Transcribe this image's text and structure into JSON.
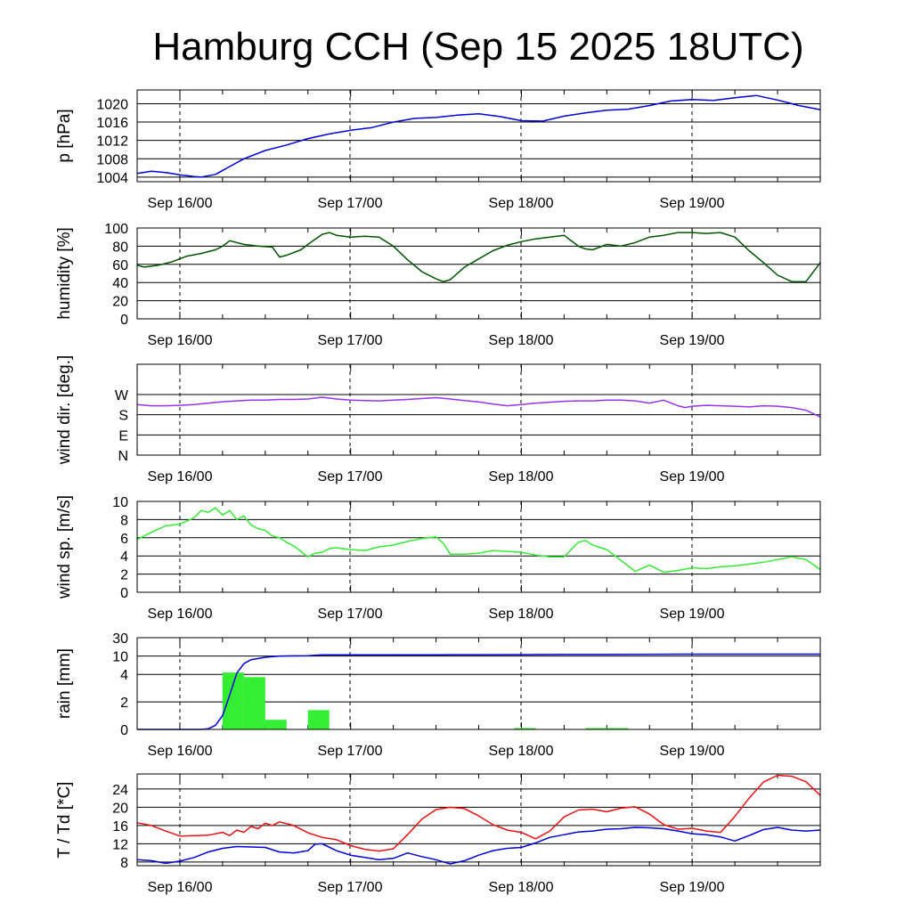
{
  "title": "Hamburg CCH (Sep 15 2025 18UTC)",
  "x_day_labels": [
    "Sep 16/00",
    "Sep 17/00",
    "Sep 18/00",
    "Sep 19/00"
  ],
  "chart_data": [
    {
      "id": "pressure",
      "type": "line",
      "ylabel": "p [hPa]",
      "ylim": [
        1003,
        1023
      ],
      "yticks": [
        1004,
        1008,
        1012,
        1016,
        1020
      ],
      "ytick_labels": [
        "1004",
        "1008",
        "1012",
        "1016",
        "1020"
      ],
      "xlim": [
        -6,
        90
      ],
      "series": [
        {
          "color": "#0000dd",
          "x": [
            -6,
            -4,
            -2,
            0,
            2,
            3,
            5,
            7,
            9,
            12,
            15,
            18,
            21,
            24,
            27,
            30,
            33,
            36,
            39,
            42,
            45,
            48,
            51,
            54,
            57,
            60,
            63,
            66,
            69,
            72,
            75,
            78,
            81,
            84,
            87,
            90
          ],
          "y": [
            1004.8,
            1005.3,
            1005.0,
            1004.5,
            1004.1,
            1004.0,
            1004.6,
            1006.3,
            1008.0,
            1009.8,
            1011.0,
            1012.4,
            1013.4,
            1014.2,
            1014.8,
            1016.0,
            1016.8,
            1017.0,
            1017.5,
            1017.8,
            1017.2,
            1016.3,
            1016.2,
            1017.3,
            1018.0,
            1018.6,
            1018.8,
            1019.6,
            1020.6,
            1020.9,
            1020.7,
            1021.3,
            1021.8,
            1020.8,
            1019.6,
            1018.7
          ]
        }
      ]
    },
    {
      "id": "humidity",
      "type": "line",
      "ylabel": "humidity [%]",
      "ylim": [
        0,
        100
      ],
      "yticks": [
        0,
        20,
        40,
        60,
        80,
        100
      ],
      "ytick_labels": [
        "0",
        "20",
        "40",
        "60",
        "80",
        "100"
      ],
      "xlim": [
        -6,
        90
      ],
      "series": [
        {
          "color": "#005500",
          "x": [
            -6,
            -5,
            -3,
            -1,
            1,
            3,
            5,
            6,
            7,
            9,
            11,
            13,
            14,
            15,
            17,
            18,
            20,
            21,
            22,
            24,
            26,
            28,
            30,
            32,
            34,
            36,
            37,
            38,
            40,
            42,
            44,
            46,
            48,
            50,
            52,
            54,
            56,
            57,
            58,
            60,
            62,
            64,
            66,
            68,
            70,
            72,
            74,
            76,
            78,
            80,
            82,
            84,
            86,
            88,
            90
          ],
          "y": [
            59,
            57,
            59,
            63,
            69,
            72,
            76,
            80,
            86,
            82,
            80,
            79,
            68,
            70,
            76,
            82,
            93,
            95,
            92,
            90,
            91,
            90,
            80,
            65,
            52,
            44,
            41,
            43,
            57,
            66,
            75,
            81,
            85,
            88,
            90,
            92,
            80,
            77,
            76,
            82,
            80,
            84,
            90,
            92,
            95,
            95,
            94,
            95,
            90,
            75,
            62,
            48,
            41,
            41,
            62
          ]
        }
      ]
    },
    {
      "id": "wind_direction",
      "type": "line",
      "ylabel": "wind dir. [deg.]",
      "ylim": [
        0,
        405
      ],
      "yticks": [
        0,
        90,
        180,
        270
      ],
      "ytick_labels": [
        "N",
        "E",
        "S",
        "W"
      ],
      "xlim": [
        -6,
        90
      ],
      "series": [
        {
          "color": "#9933ee",
          "x": [
            -6,
            -4,
            -2,
            0,
            2,
            4,
            6,
            8,
            10,
            12,
            14,
            16,
            18,
            20,
            22,
            24,
            26,
            28,
            30,
            32,
            34,
            36,
            38,
            40,
            42,
            44,
            46,
            48,
            50,
            52,
            54,
            56,
            58,
            60,
            62,
            64,
            66,
            68,
            70,
            71,
            72,
            74,
            76,
            78,
            80,
            82,
            84,
            86,
            88,
            90
          ],
          "y": [
            225,
            220,
            220,
            222,
            225,
            232,
            238,
            242,
            245,
            245,
            248,
            248,
            250,
            258,
            250,
            245,
            243,
            242,
            245,
            248,
            252,
            256,
            250,
            243,
            237,
            228,
            220,
            225,
            232,
            236,
            240,
            242,
            242,
            245,
            245,
            242,
            232,
            245,
            220,
            212,
            218,
            222,
            220,
            218,
            215,
            220,
            218,
            212,
            200,
            170
          ]
        }
      ]
    },
    {
      "id": "wind_speed",
      "type": "line",
      "ylabel": "wind sp. [m/s]",
      "ylim": [
        0,
        10
      ],
      "yticks": [
        0,
        2,
        4,
        6,
        8,
        10
      ],
      "ytick_labels": [
        "0",
        "2",
        "4",
        "6",
        "8",
        "10"
      ],
      "xlim": [
        -6,
        90
      ],
      "series": [
        {
          "color": "#33ee33",
          "x": [
            -6,
            -4,
            -2,
            0,
            2,
            3,
            4,
            5,
            6,
            7,
            8,
            9,
            10,
            11,
            12,
            13,
            14,
            15,
            16,
            17,
            18,
            19,
            20,
            21,
            22,
            24,
            26,
            28,
            30,
            32,
            34,
            36,
            37,
            38,
            40,
            42,
            44,
            46,
            48,
            50,
            52,
            54,
            56,
            57,
            58,
            60,
            62,
            64,
            66,
            68,
            70,
            72,
            74,
            76,
            78,
            80,
            82,
            84,
            86,
            88,
            90
          ],
          "y": [
            5.8,
            6.6,
            7.3,
            7.5,
            8.2,
            9.0,
            8.8,
            9.3,
            8.5,
            9.0,
            8.0,
            8.4,
            7.4,
            7.0,
            6.8,
            6.2,
            6.0,
            5.5,
            5.1,
            4.5,
            3.9,
            4.3,
            4.4,
            4.8,
            4.9,
            4.7,
            4.6,
            5.0,
            5.2,
            5.6,
            5.9,
            6.1,
            5.4,
            4.2,
            4.2,
            4.3,
            4.6,
            4.5,
            4.4,
            4.1,
            3.9,
            3.9,
            5.5,
            5.7,
            5.2,
            4.7,
            3.5,
            2.3,
            3.0,
            2.2,
            2.4,
            2.7,
            2.6,
            2.8,
            2.9,
            3.1,
            3.3,
            3.6,
            3.9,
            3.6,
            2.5
          ]
        }
      ]
    },
    {
      "id": "rain",
      "type": "bar+line",
      "ylabel": "rain [mm]",
      "scale": "piecewise",
      "scale_breaks": [
        [
          0,
          0
        ],
        [
          2,
          0.3
        ],
        [
          4,
          0.6
        ],
        [
          10,
          0.8
        ],
        [
          30,
          1.0
        ]
      ],
      "yticks": [
        0,
        2,
        4,
        10,
        30
      ],
      "ytick_labels": [
        "0",
        "2",
        "4",
        "10",
        "30"
      ],
      "xlim": [
        -6,
        90
      ],
      "series": [
        {
          "type": "bar",
          "color": "#33ee33",
          "bar_width_hours": 3,
          "x": [
            7.5,
            10.5,
            13.5,
            19.5,
            48.5,
            58.5,
            61.5
          ],
          "values": [
            4.6,
            3.8,
            0.7,
            1.4,
            0.1,
            0.1,
            0.1
          ]
        },
        {
          "type": "line",
          "color": "#0000dd",
          "x": [
            -6,
            3,
            4,
            5,
            6,
            7,
            8,
            9,
            10,
            12,
            14,
            16,
            18,
            20,
            24,
            30,
            36,
            42,
            48,
            54,
            60,
            66,
            72,
            90
          ],
          "y": [
            0,
            0,
            0.05,
            0.3,
            1.0,
            2.5,
            4.4,
            7.5,
            8.8,
            9.6,
            10.0,
            10.2,
            10.4,
            11.3,
            11.4,
            11.4,
            11.4,
            11.5,
            11.6,
            11.7,
            11.8,
            11.9,
            12.0,
            12.0
          ]
        }
      ]
    },
    {
      "id": "temperature",
      "type": "line",
      "ylabel": "T / Td [*C]",
      "ylim": [
        7.2,
        27.3
      ],
      "yticks": [
        8,
        12,
        16,
        20,
        24
      ],
      "ytick_labels": [
        "8",
        "12",
        "16",
        "20",
        "24"
      ],
      "xlim": [
        -6,
        90
      ],
      "series": [
        {
          "color": "#ee1111",
          "x": [
            -6,
            -4,
            -2,
            0,
            2,
            4,
            6,
            7,
            8,
            9,
            10,
            11,
            12,
            13,
            14,
            16,
            18,
            20,
            22,
            24,
            26,
            28,
            30,
            32,
            34,
            36,
            38,
            40,
            42,
            44,
            46,
            48,
            50,
            52,
            54,
            56,
            58,
            60,
            62,
            64,
            66,
            68,
            70,
            72,
            74,
            76,
            78,
            80,
            82,
            84,
            86,
            88,
            90
          ],
          "y": [
            16.6,
            16.0,
            14.8,
            13.7,
            13.8,
            13.9,
            14.5,
            13.8,
            15.0,
            14.5,
            15.8,
            15.3,
            16.5,
            16.0,
            16.8,
            16.0,
            14.4,
            13.4,
            12.9,
            11.6,
            10.8,
            10.4,
            10.9,
            14.0,
            17.4,
            19.5,
            20.0,
            19.7,
            18.1,
            16.2,
            15.0,
            14.5,
            13.1,
            14.8,
            17.9,
            19.4,
            19.6,
            19.0,
            19.8,
            20.1,
            18.5,
            16.2,
            15.2,
            15.4,
            14.8,
            14.5,
            18.0,
            22.0,
            25.5,
            27.0,
            26.8,
            25.6,
            22.6
          ]
        },
        {
          "color": "#0000dd",
          "x": [
            -6,
            -4,
            -2,
            0,
            2,
            4,
            6,
            8,
            10,
            12,
            14,
            16,
            18,
            19,
            20,
            22,
            24,
            26,
            28,
            30,
            32,
            34,
            36,
            38,
            40,
            42,
            44,
            46,
            48,
            50,
            52,
            54,
            56,
            58,
            60,
            62,
            64,
            66,
            68,
            70,
            72,
            74,
            76,
            78,
            80,
            82,
            84,
            86,
            88,
            90
          ],
          "y": [
            8.5,
            8.3,
            7.7,
            8.2,
            9.0,
            10.2,
            11.0,
            11.4,
            11.3,
            11.2,
            10.2,
            10.0,
            10.5,
            11.9,
            12.0,
            10.5,
            9.5,
            9.0,
            8.5,
            8.8,
            10.0,
            9.2,
            8.5,
            7.6,
            8.3,
            9.5,
            10.5,
            11.0,
            11.2,
            12.2,
            13.4,
            14.0,
            14.6,
            14.8,
            15.2,
            15.3,
            15.6,
            15.5,
            15.3,
            14.8,
            14.2,
            14.0,
            13.5,
            12.6,
            13.8,
            15.1,
            15.6,
            15.0,
            14.8,
            15.0
          ]
        }
      ]
    }
  ]
}
